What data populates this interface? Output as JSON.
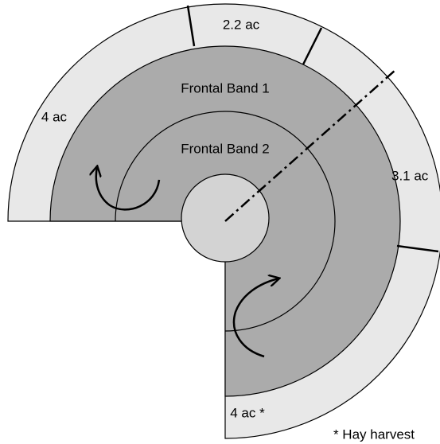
{
  "labels": {
    "band_1": "Frontal Band 1",
    "band_2": "Frontal Band 2",
    "paddock_left": "4 ac",
    "paddock_top": "2.2 ac",
    "paddock_right": "3.1 ac",
    "paddock_bottom": "4 ac *",
    "footnote": "* Hay harvest"
  }
}
